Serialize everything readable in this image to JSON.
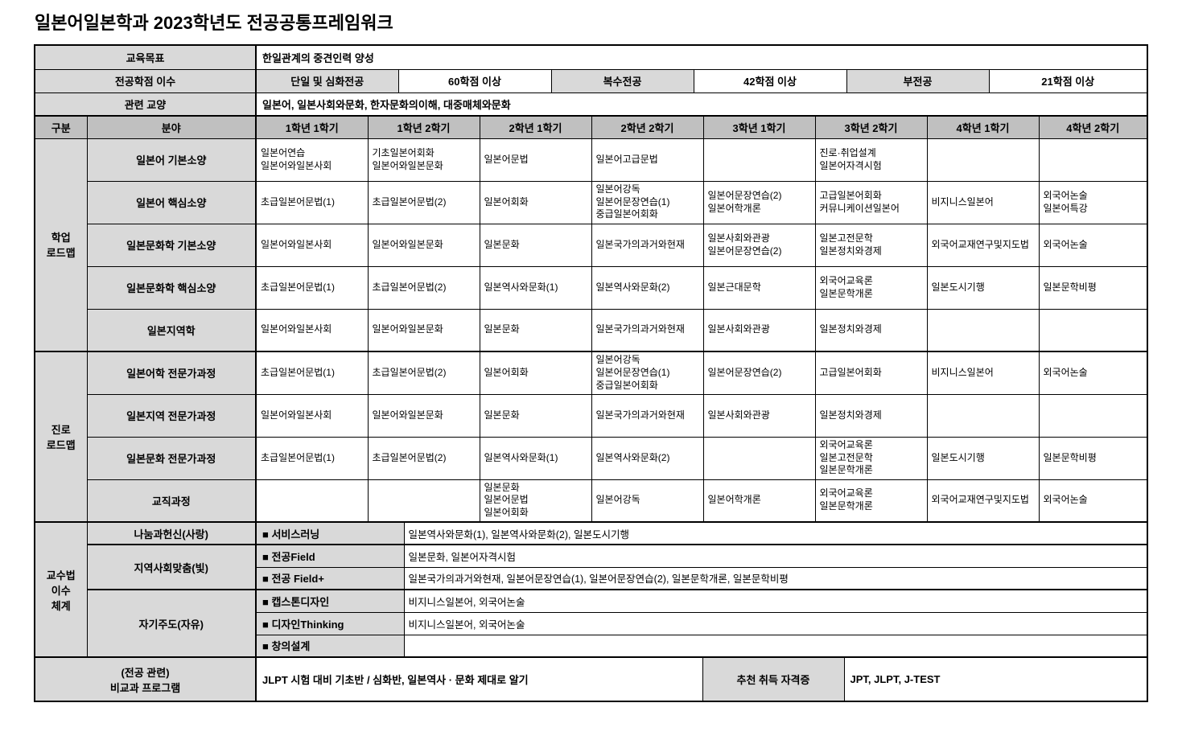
{
  "title": "일본어일본학과 2023학년도 전공공통프레임워크",
  "top": {
    "goal_label": "교육목표",
    "goal_value": "한일관계의 중견인력 양성",
    "credits_label": "전공학점 이수",
    "credits": [
      {
        "label": "단일 및 심화전공",
        "value": "60학점 이상"
      },
      {
        "label": "복수전공",
        "value": "42학점 이상"
      },
      {
        "label": "부전공",
        "value": "21학점 이상"
      }
    ],
    "liberal_label": "관련 교양",
    "liberal_value": "일본어, 일본사회와문화, 한자문화의이해, 대중매체와문화"
  },
  "grid": {
    "category_header": "구분",
    "field_header": "분야",
    "semesters": [
      "1학년 1학기",
      "1학년 2학기",
      "2학년 1학기",
      "2학년 2학기",
      "3학년 1학기",
      "3학년 2학기",
      "4학년 1학기",
      "4학년 2학기"
    ]
  },
  "roadmap_sections": [
    {
      "label": "학업\n로드맵",
      "rows": [
        {
          "field": "일본어 기본소양",
          "cells": [
            "일본어연습\n일본어와일본사회",
            "기초일본어회화\n일본어와일본문화",
            "일본어문법",
            "일본어고급문법",
            "",
            "진로·취업설계\n일본어자격시험",
            "",
            ""
          ]
        },
        {
          "field": "일본어 핵심소양",
          "cells": [
            "초급일본어문법(1)",
            "초급일본어문법(2)",
            "일본어회화",
            "일본어강독\n일본어문장연습(1)\n중급일본어회화",
            "일본어문장연습(2)\n일본어학개론",
            "고급일본어회화\n커뮤니케이션일본어",
            "비지니스일본어",
            "외국어논술\n일본어특강"
          ]
        },
        {
          "field": "일본문화학 기본소양",
          "cells": [
            "일본어와일본사회",
            "일본어와일본문화",
            "일본문화",
            "일본국가의과거와현재",
            "일본사회와관광\n일본어문장연습(2)",
            "일본고전문학\n일본정치와경제",
            "외국어교재연구및지도법",
            "외국어논술"
          ]
        },
        {
          "field": "일본문화학 핵심소양",
          "cells": [
            "초급일본어문법(1)",
            "초급일본어문법(2)",
            "일본역사와문화(1)",
            "일본역사와문화(2)",
            "일본근대문학",
            "외국어교육론\n일본문학개론",
            "일본도시기행",
            "일본문학비평"
          ]
        },
        {
          "field": "일본지역학",
          "cells": [
            "일본어와일본사회",
            "일본어와일본문화",
            "일본문화",
            "일본국가의과거와현재",
            "일본사회와관광",
            "일본정치와경제",
            "",
            ""
          ]
        }
      ]
    },
    {
      "label": "진로\n로드맵",
      "rows": [
        {
          "field": "일본어학 전문가과정",
          "cells": [
            "초급일본어문법(1)",
            "초급일본어문법(2)",
            "일본어회화",
            "일본어강독\n일본어문장연습(1)\n중급일본어회화",
            "일본어문장연습(2)",
            "고급일본어회화",
            "비지니스일본어",
            "외국어논술"
          ]
        },
        {
          "field": "일본지역 전문가과정",
          "cells": [
            "일본어와일본사회",
            "일본어와일본문화",
            "일본문화",
            "일본국가의과거와현재",
            "일본사회와관광",
            "일본정치와경제",
            "",
            ""
          ]
        },
        {
          "field": "일본문화 전문가과정",
          "cells": [
            "초급일본어문법(1)",
            "초급일본어문법(2)",
            "일본역사와문화(1)",
            "일본역사와문화(2)",
            "",
            "외국어교육론\n일본고전문학\n일본문학개론",
            "일본도시기행",
            "일본문학비평"
          ]
        },
        {
          "field": "교직과정",
          "cells": [
            "",
            "",
            "일본문화\n일본어문법\n일본어회화",
            "일본어강독",
            "일본어학개론",
            "외국어교육론\n일본문학개론",
            "외국어교재연구및지도법",
            "외국어논술"
          ]
        }
      ]
    }
  ],
  "pedagogy": {
    "label": "교수법\n이수\n체계",
    "groups": [
      {
        "label": "나눔과헌신(사랑)",
        "programs": [
          {
            "name": "■ 서비스러닝",
            "courses": "일본역사와문화(1), 일본역사와문화(2), 일본도시기행"
          }
        ]
      },
      {
        "label": "지역사회맞춤(빛)",
        "programs": [
          {
            "name": "■ 전공Field",
            "courses": "일본문화, 일본어자격시험"
          },
          {
            "name": "■ 전공 Field+",
            "courses": "일본국가의과거와현재, 일본어문장연습(1), 일본어문장연습(2), 일본문학개론, 일본문학비평"
          }
        ]
      },
      {
        "label": "자기주도(자유)",
        "programs": [
          {
            "name": "■ 캡스톤디자인",
            "courses": "비지니스일본어, 외국어논술"
          },
          {
            "name": "■ 디자인Thinking",
            "courses": "비지니스일본어, 외국어논술"
          },
          {
            "name": "■ 창의설계",
            "courses": ""
          }
        ]
      }
    ]
  },
  "extracurricular": {
    "label": "(전공 관련)\n비교과 프로그램",
    "value": "JLPT 시험 대비 기초반 / 심화반, 일본역사 · 문화 제대로 알기",
    "cert_label": "추천 취득 자격증",
    "cert_value": "JPT, JLPT, J-TEST"
  },
  "colors": {
    "header_gray": "#c0c0c0",
    "label_gray": "#d9d9d9",
    "border": "#000000"
  }
}
